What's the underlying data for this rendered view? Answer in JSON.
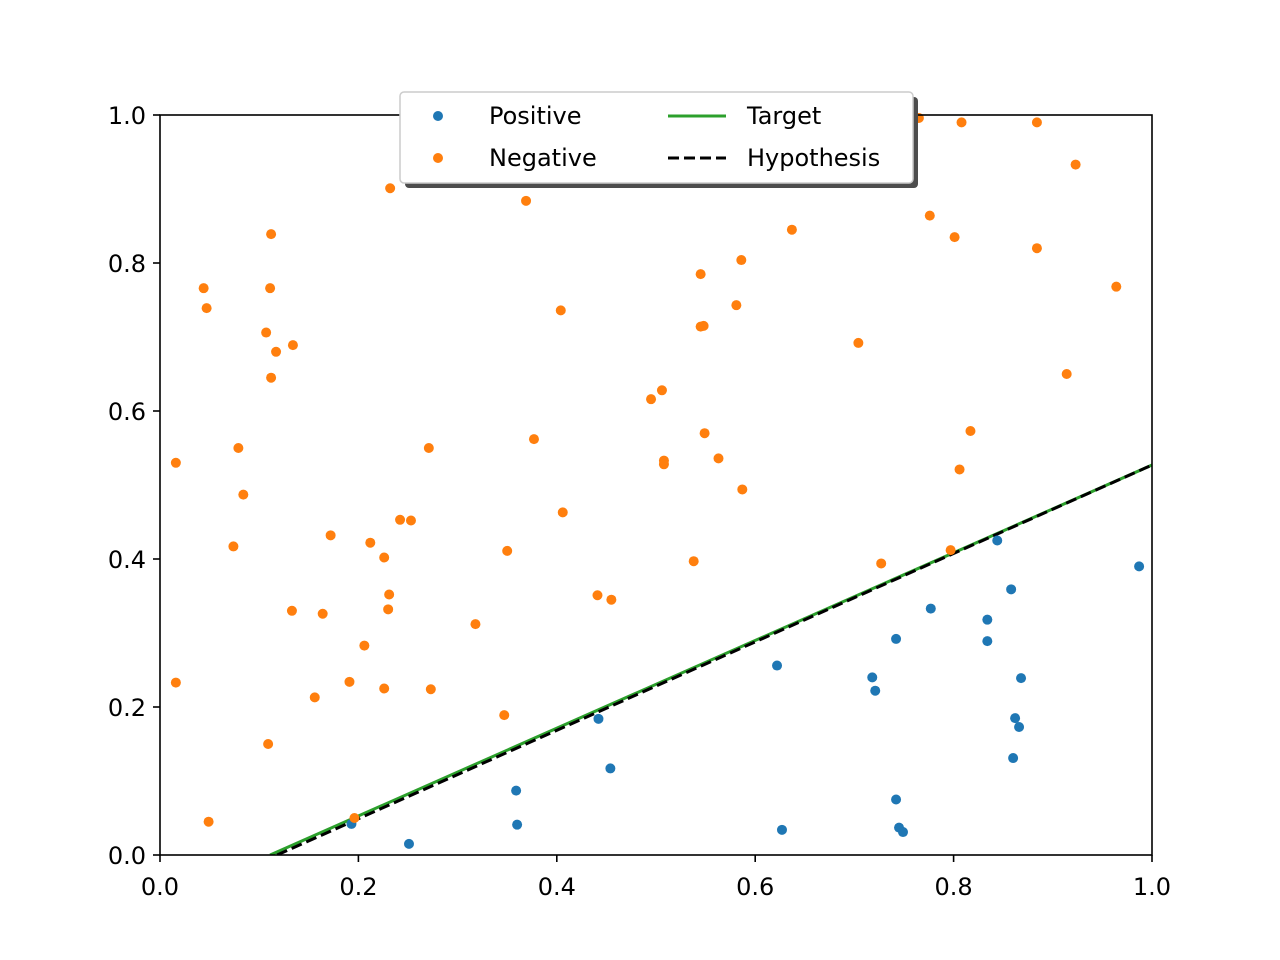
{
  "chart_data": {
    "type": "scatter",
    "title": "",
    "xlabel": "",
    "ylabel": "",
    "xlim": [
      0.0,
      1.0
    ],
    "ylim": [
      0.0,
      1.0
    ],
    "grid": false,
    "legend_placement": "top-center",
    "xticks": [
      "0.0",
      "0.2",
      "0.4",
      "0.6",
      "0.8",
      "1.0"
    ],
    "yticks": [
      "0.0",
      "0.2",
      "0.4",
      "0.6",
      "0.8",
      "1.0"
    ],
    "series": [
      {
        "name": "Positive",
        "kind": "points",
        "color": "#1f77b4",
        "points": [
          [
            0.193,
            0.042
          ],
          [
            0.251,
            0.015
          ],
          [
            0.359,
            0.087
          ],
          [
            0.36,
            0.041
          ],
          [
            0.442,
            0.184
          ],
          [
            0.454,
            0.117
          ],
          [
            0.622,
            0.256
          ],
          [
            0.627,
            0.034
          ],
          [
            0.718,
            0.24
          ],
          [
            0.721,
            0.222
          ],
          [
            0.742,
            0.292
          ],
          [
            0.742,
            0.075
          ],
          [
            0.745,
            0.037
          ],
          [
            0.749,
            0.031
          ],
          [
            0.777,
            0.333
          ],
          [
            0.834,
            0.318
          ],
          [
            0.834,
            0.289
          ],
          [
            0.844,
            0.425
          ],
          [
            0.858,
            0.359
          ],
          [
            0.86,
            0.131
          ],
          [
            0.862,
            0.185
          ],
          [
            0.866,
            0.173
          ],
          [
            0.868,
            0.239
          ],
          [
            0.987,
            0.39
          ]
        ]
      },
      {
        "name": "Negative",
        "kind": "points",
        "color": "#ff7f0e",
        "points": [
          [
            0.016,
            0.53
          ],
          [
            0.016,
            0.233
          ],
          [
            0.044,
            0.766
          ],
          [
            0.047,
            0.739
          ],
          [
            0.049,
            0.045
          ],
          [
            0.074,
            0.417
          ],
          [
            0.079,
            0.55
          ],
          [
            0.084,
            0.487
          ],
          [
            0.107,
            0.706
          ],
          [
            0.109,
            0.15
          ],
          [
            0.111,
            0.766
          ],
          [
            0.112,
            0.839
          ],
          [
            0.112,
            0.645
          ],
          [
            0.117,
            0.68
          ],
          [
            0.133,
            0.33
          ],
          [
            0.134,
            0.689
          ],
          [
            0.156,
            0.213
          ],
          [
            0.164,
            0.326
          ],
          [
            0.172,
            0.432
          ],
          [
            0.191,
            0.234
          ],
          [
            0.196,
            0.05
          ],
          [
            0.206,
            0.283
          ],
          [
            0.212,
            0.422
          ],
          [
            0.226,
            0.402
          ],
          [
            0.226,
            0.225
          ],
          [
            0.23,
            0.332
          ],
          [
            0.231,
            0.352
          ],
          [
            0.232,
            0.901
          ],
          [
            0.242,
            0.453
          ],
          [
            0.253,
            0.452
          ],
          [
            0.271,
            0.55
          ],
          [
            0.273,
            0.224
          ],
          [
            0.318,
            0.312
          ],
          [
            0.347,
            0.189
          ],
          [
            0.35,
            0.411
          ],
          [
            0.369,
            0.884
          ],
          [
            0.377,
            0.562
          ],
          [
            0.404,
            0.736
          ],
          [
            0.406,
            0.463
          ],
          [
            0.441,
            0.351
          ],
          [
            0.455,
            0.345
          ],
          [
            0.495,
            0.616
          ],
          [
            0.506,
            0.628
          ],
          [
            0.508,
            0.533
          ],
          [
            0.508,
            0.528
          ],
          [
            0.538,
            0.397
          ],
          [
            0.545,
            0.785
          ],
          [
            0.545,
            0.714
          ],
          [
            0.548,
            0.715
          ],
          [
            0.549,
            0.57
          ],
          [
            0.563,
            0.536
          ],
          [
            0.581,
            0.743
          ],
          [
            0.586,
            0.804
          ],
          [
            0.587,
            0.494
          ],
          [
            0.637,
            0.845
          ],
          [
            0.704,
            0.692
          ],
          [
            0.727,
            0.394
          ],
          [
            0.763,
            0.996
          ],
          [
            0.765,
            0.996
          ],
          [
            0.776,
            0.864
          ],
          [
            0.797,
            0.412
          ],
          [
            0.801,
            0.835
          ],
          [
            0.806,
            0.521
          ],
          [
            0.808,
            0.99
          ],
          [
            0.817,
            0.573
          ],
          [
            0.884,
            0.99
          ],
          [
            0.884,
            0.82
          ],
          [
            0.914,
            0.65
          ],
          [
            0.923,
            0.933
          ],
          [
            0.964,
            0.768
          ]
        ]
      },
      {
        "name": "Target",
        "kind": "line",
        "color": "#2ca02c",
        "dash": "solid",
        "points": [
          [
            0.111,
            0.0
          ],
          [
            1.0,
            0.527
          ]
        ]
      },
      {
        "name": "Hypothesis",
        "kind": "line",
        "color": "#000000",
        "dash": "dashed",
        "points": [
          [
            0.118,
            0.0
          ],
          [
            1.0,
            0.527
          ]
        ]
      }
    ]
  }
}
